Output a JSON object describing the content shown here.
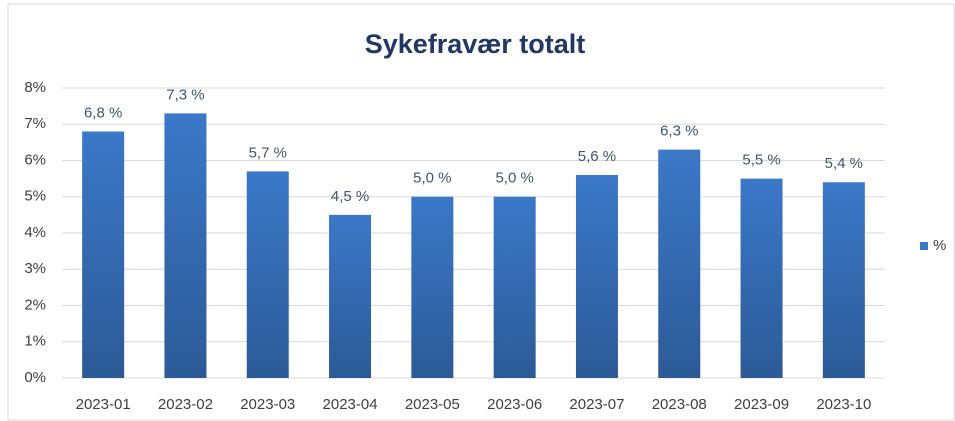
{
  "chart_data": {
    "type": "bar",
    "title": "Sykefravær totalt",
    "categories": [
      "2023-01",
      "2023-02",
      "2023-03",
      "2023-04",
      "2023-05",
      "2023-06",
      "2023-07",
      "2023-08",
      "2023-09",
      "2023-10"
    ],
    "series": [
      {
        "name": "%",
        "color": "#3b78c8",
        "values": [
          6.8,
          7.3,
          5.7,
          4.5,
          5.0,
          5.0,
          5.6,
          6.3,
          5.5,
          5.4
        ],
        "value_labels": [
          "6,8 %",
          "7,3 %",
          "5,7 %",
          "4,5 %",
          "5,0 %",
          "5,0 %",
          "5,6 %",
          "6,3 %",
          "5,5 %",
          "5,4 %"
        ]
      }
    ],
    "ylim": [
      0,
      8
    ],
    "yticks": [
      {
        "value": 0,
        "label": "0%"
      },
      {
        "value": 1,
        "label": "1%"
      },
      {
        "value": 2,
        "label": "2%"
      },
      {
        "value": 3,
        "label": "3%"
      },
      {
        "value": 4,
        "label": "4%"
      },
      {
        "value": 5,
        "label": "5%"
      },
      {
        "value": 6,
        "label": "6%"
      },
      {
        "value": 7,
        "label": "7%"
      },
      {
        "value": 8,
        "label": "8%"
      }
    ],
    "grid": true,
    "legend": "right"
  }
}
